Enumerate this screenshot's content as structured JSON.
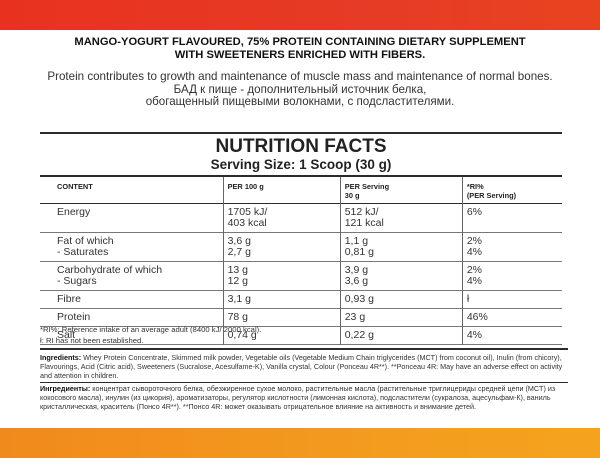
{
  "colors": {
    "top_bar": "#e63b26",
    "bottom_bar": "#f39b1e"
  },
  "headline": {
    "line1": "MANGO-YOGURT FLAVOURED, 75% PROTEIN CONTAINING DIETARY SUPPLEMENT",
    "line2": "WITH SWEETENERS ENRICHED WITH FIBERS."
  },
  "claims": {
    "en": "Protein contributes to growth and maintenance of muscle mass and maintenance of normal bones.",
    "ru_line1": "БАД к пище - дополнительный источник белка,",
    "ru_line2": "обогащенный пищевыми волокнами, с подсластителями."
  },
  "nutrition": {
    "title": "NUTRITION FACTS",
    "serving": "Serving Size: 1 Scoop (30 g)",
    "headers": {
      "content": "CONTENT",
      "per100": "PER 100 g",
      "perServing_a": "PER Serving",
      "perServing_b": "30 g",
      "ri_a": "*RI%",
      "ri_b": "(PER Serving)"
    },
    "rows": [
      {
        "label": "Energy",
        "label2": "",
        "p100": "1705 kJ/",
        "p100b": "403 kcal",
        "ps": "512 kJ/",
        "psb": "121 kcal",
        "ri": "6%",
        "rib": ""
      },
      {
        "label": "Fat of which",
        "label2": "- Saturates",
        "p100": "3,6 g",
        "p100b": "2,7 g",
        "ps": "1,1 g",
        "psb": "0,81 g",
        "ri": "2%",
        "rib": "4%"
      },
      {
        "label": "Carbohydrate of which",
        "label2": "- Sugars",
        "p100": "13 g",
        "p100b": "12 g",
        "ps": "3,9 g",
        "psb": "3,6 g",
        "ri": "2%",
        "rib": "4%"
      },
      {
        "label": "Fibre",
        "label2": "",
        "p100": "3,1 g",
        "p100b": "",
        "ps": "0,93 g",
        "psb": "",
        "ri": "ł",
        "rib": ""
      },
      {
        "label": "Protein",
        "label2": "",
        "p100": "78 g",
        "p100b": "",
        "ps": "23 g",
        "psb": "",
        "ri": "46%",
        "rib": ""
      },
      {
        "label": "Salt",
        "label2": "",
        "p100": "0,74 g",
        "p100b": "",
        "ps": "0,22 g",
        "psb": "",
        "ri": "4%",
        "rib": ""
      }
    ]
  },
  "footnotes": {
    "ri": "*RI%: Reference intake of an average adult (8400 kJ/ 2000 kcal).",
    "ri_none": "ł: RI has not been established."
  },
  "ingredients": {
    "en_label": "Ingredients:",
    "en_text": " Whey Protein Concentrate, Skimmed milk powder, Vegetable oils (Vegetable Medium Chain triglycerides (MCT) from coconut oil), Inulin (from chicory), Flavourings, Acid (Citric acid), Sweeteners (Sucralose, Acesulfame-K), Vanilla crystal, Colour (Ponceau 4R**). **Ponceau 4R: May have an adverse effect on activity and attention in children.",
    "ru_label": "Ингредиенты:",
    "ru_text": " концентрат сывороточного белка, обезжиренное сухое молоко, растительные масла (растительные триглицериды средней цепи (MCT) из кокосового масла), инулин (из цикория), ароматизаторы, регулятор кислотности (лимонная кислота), подсластители (сукралоза, ацесульфам-К), ваниль кристаллическая, краситель (Понсо 4R**). **Понсо 4R: может оказывать отрицательное влияние на активность и внимание детей."
  }
}
